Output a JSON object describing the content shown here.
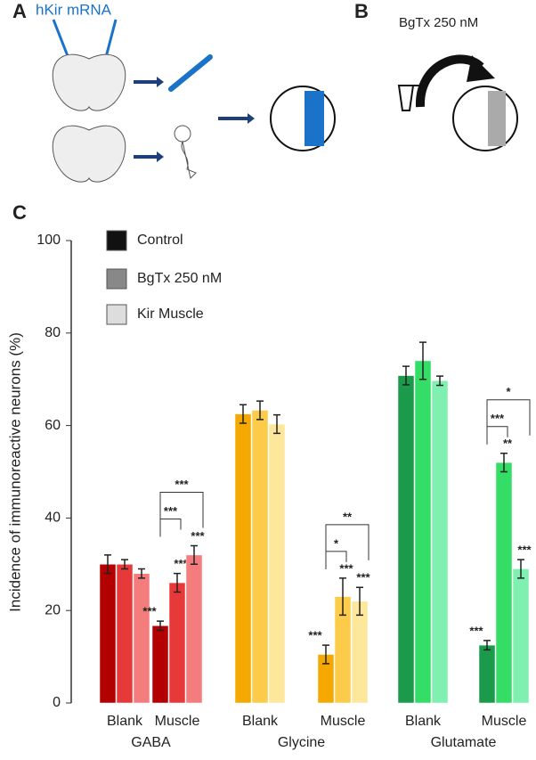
{
  "panel_a": {
    "label": "A",
    "annotation": "hKir mRNA"
  },
  "panel_b": {
    "label": "B",
    "annotation": "BgTx 250 nM"
  },
  "chart_data": {
    "type": "bar",
    "panel_label": "C",
    "y_label": "Incidence of immunoreactive neurons (%)",
    "categories": [
      "Blank",
      "Muscle",
      "Blank",
      "Muscle",
      "Blank",
      "Muscle"
    ],
    "groups": [
      "GABA",
      "Glycine",
      "Glutamate"
    ],
    "series": [
      {
        "name": "Control",
        "color": "#111111",
        "bar_colors": [
          "#b30000",
          "#b30000",
          "#f5a800",
          "#f5a800",
          "#1a9a4a",
          "#1a9a4a"
        ],
        "values": [
          30,
          16.7,
          62.5,
          10.5,
          70.8,
          12.5
        ],
        "errors": [
          2,
          1,
          2,
          2,
          2,
          1
        ],
        "significance": [
          null,
          "***",
          null,
          "***",
          null,
          "***"
        ]
      },
      {
        "name": "BgTx 250 nM",
        "color": "#888888",
        "bar_colors": [
          "#e8393a",
          "#e8393a",
          "#fccb4a",
          "#fccb4a",
          "#33dd66",
          "#33dd66"
        ],
        "values": [
          30,
          26,
          63.3,
          23,
          74,
          52
        ],
        "errors": [
          1,
          2,
          2,
          4,
          4,
          2
        ],
        "significance": [
          null,
          "***",
          null,
          "***",
          null,
          "**"
        ]
      },
      {
        "name": "Kir Muscle",
        "color": "#dddddd",
        "bar_colors": [
          "#f47c7c",
          "#f47c7c",
          "#fde79a",
          "#fde79a",
          "#7ff0b0",
          "#7ff0b0"
        ],
        "values": [
          28,
          32,
          60.3,
          22,
          69.7,
          29
        ],
        "errors": [
          1,
          2,
          2,
          3,
          1,
          2
        ],
        "significance": [
          null,
          "***",
          null,
          "***",
          null,
          "***"
        ]
      }
    ],
    "brackets": [
      null,
      [
        "***",
        "***"
      ],
      null,
      [
        "*",
        "**"
      ],
      null,
      [
        "***",
        "*"
      ]
    ],
    "ylim": [
      0,
      100
    ],
    "yticks": [
      0,
      20,
      40,
      60,
      80,
      100
    ],
    "grid": false
  }
}
